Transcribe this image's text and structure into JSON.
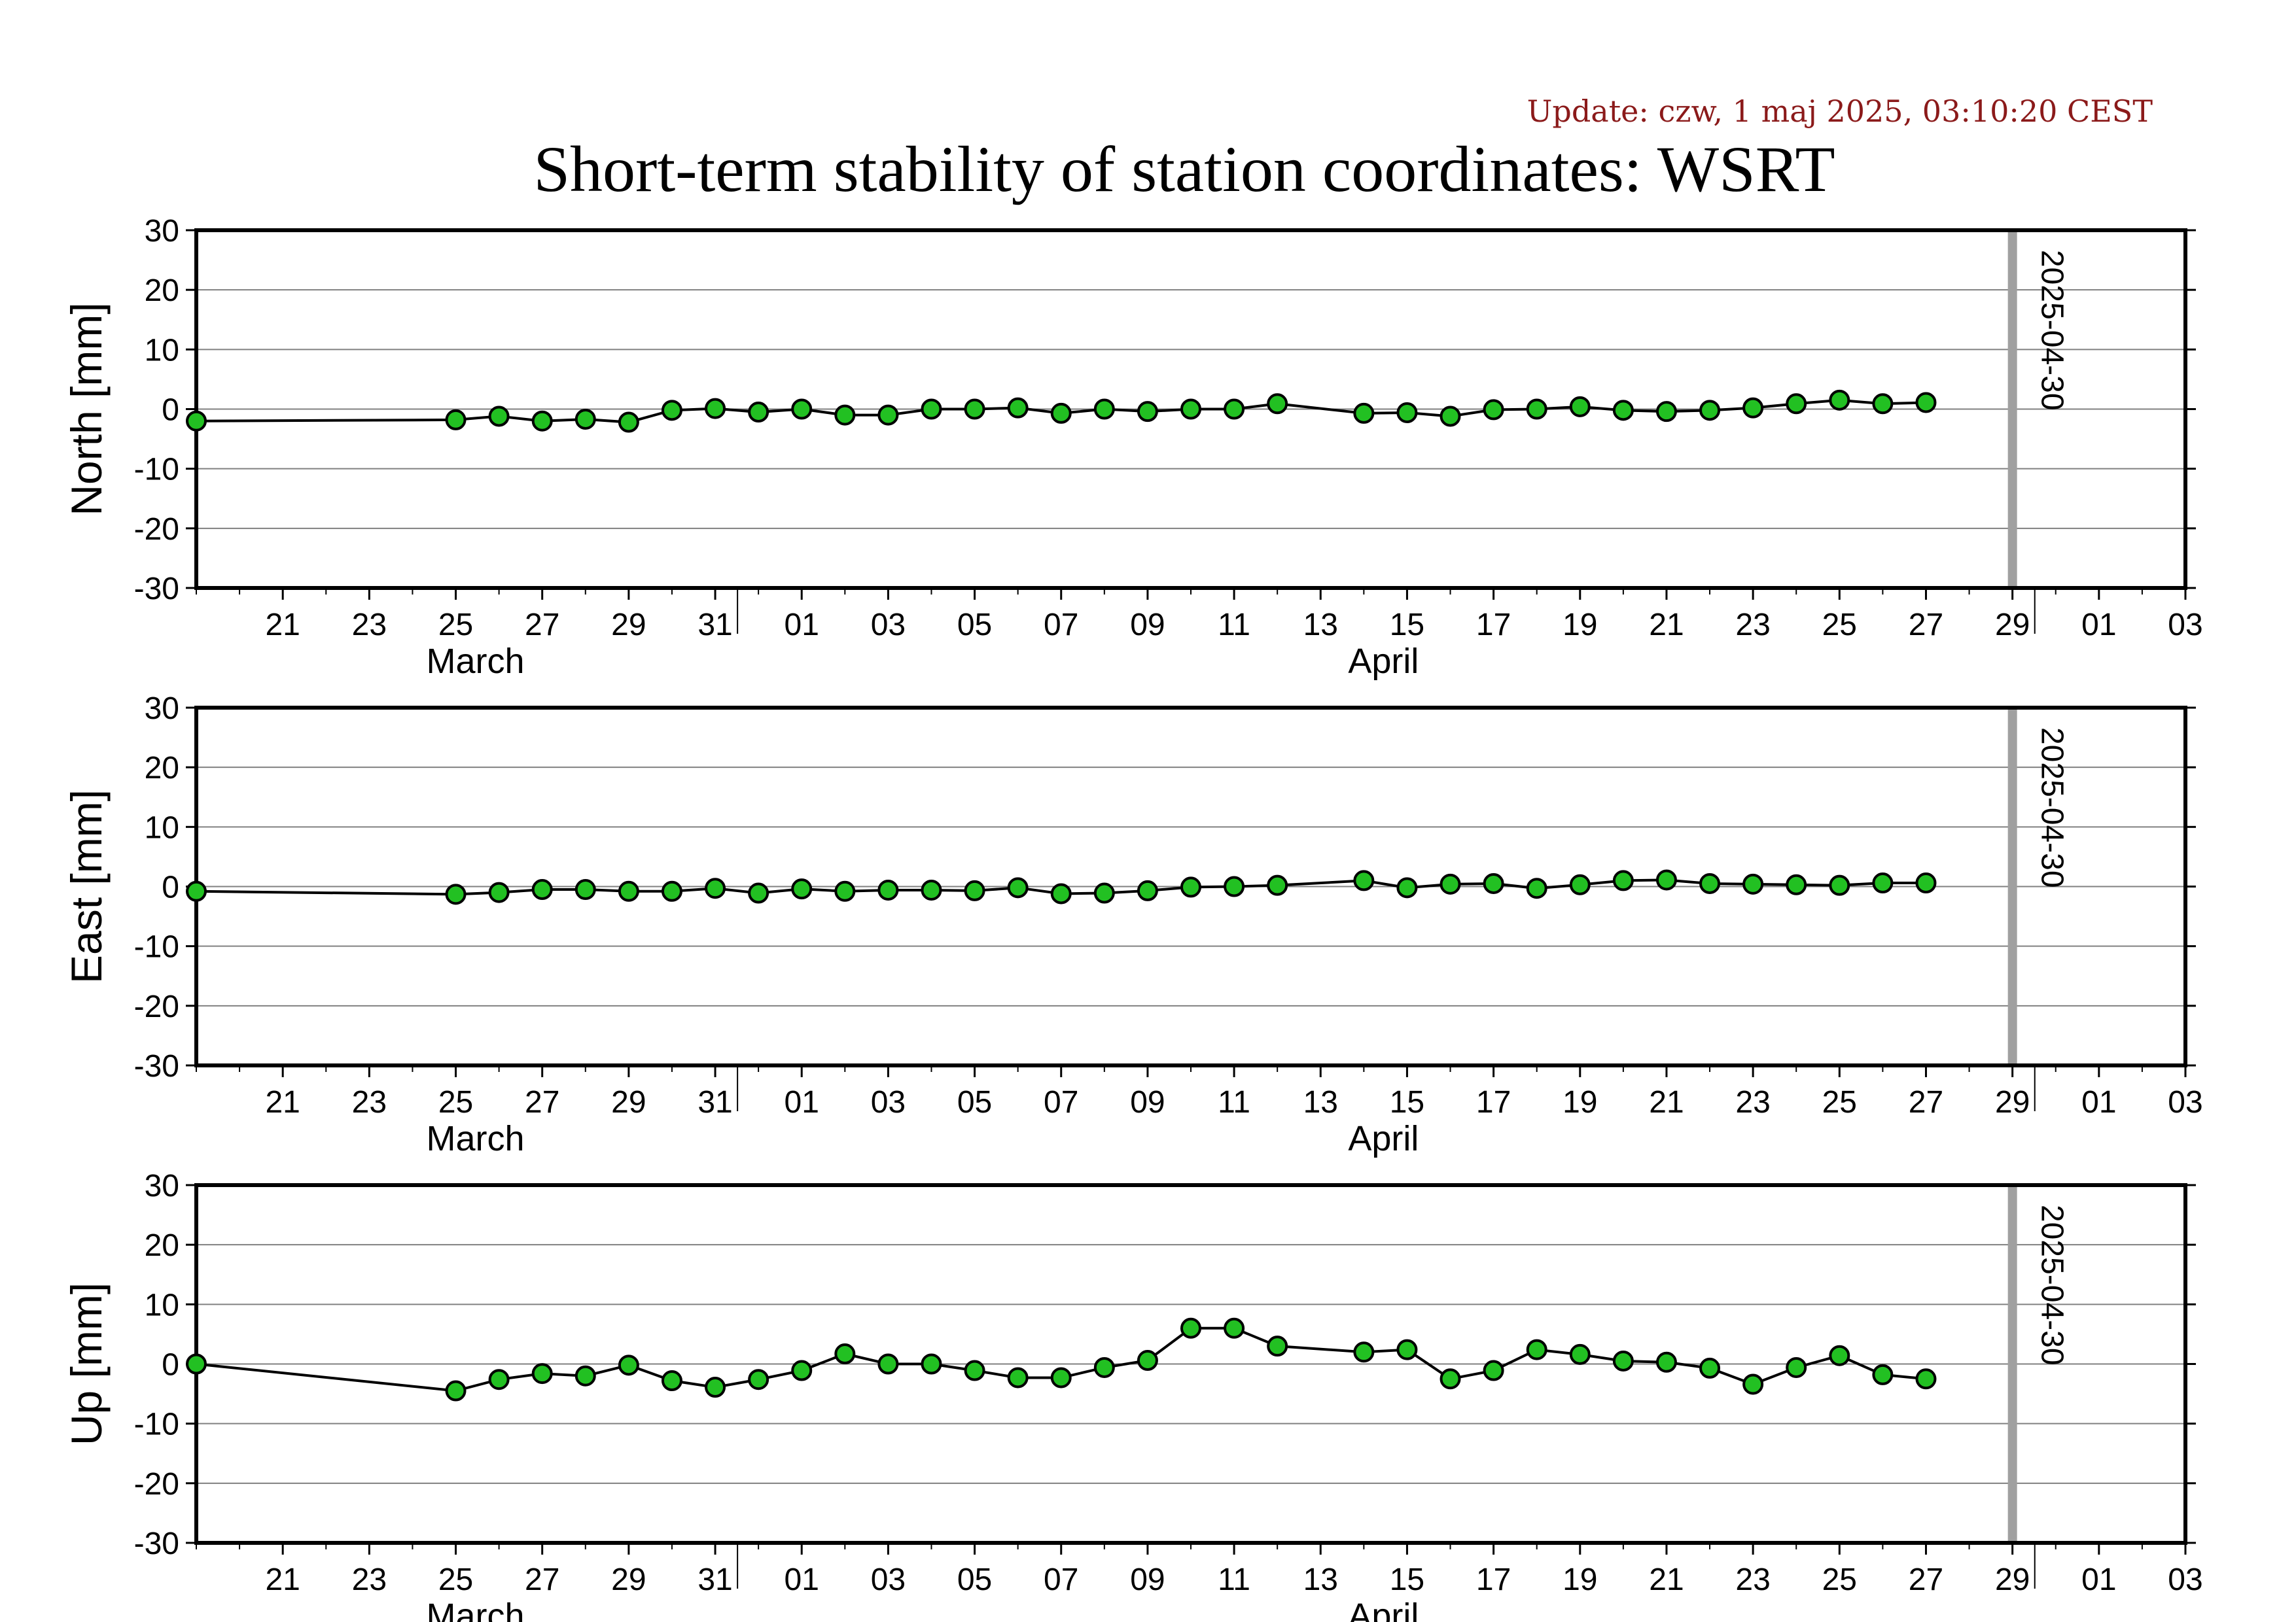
{
  "update_text": "Update: czw, 1 maj 2025, 03:10:20 CEST",
  "title": "Short-term stability of station coordinates: WSRT",
  "colors": {
    "point_fill": "#22c022",
    "point_stroke": "#000000",
    "line": "#000000",
    "grid": "#808080",
    "marker_bar": "#a0a0a0",
    "update_text": "#8b1a1a"
  },
  "chart_data": [
    {
      "type": "line",
      "ylabel": "North [mm]",
      "ylim": [
        -30,
        30
      ],
      "yticks": [
        -30,
        -20,
        -10,
        0,
        10,
        20,
        30
      ],
      "grid": true,
      "x_range": [
        "2025-03-19",
        "2025-05-04"
      ],
      "x_ticks": [
        "21",
        "23",
        "25",
        "27",
        "29",
        "31",
        "01",
        "03",
        "05",
        "07",
        "09",
        "11",
        "13",
        "15",
        "17",
        "19",
        "21",
        "23",
        "25",
        "27",
        "29",
        "01",
        "03"
      ],
      "month_labels": [
        "March",
        "April"
      ],
      "marker_date": "2025-04-30",
      "marker_label": "2025-04-30",
      "series": [
        {
          "x": [
            "2025-03-19",
            "2025-03-25",
            "2025-03-26",
            "2025-03-27",
            "2025-03-28",
            "2025-03-29",
            "2025-03-30",
            "2025-03-31",
            "2025-04-01",
            "2025-04-02",
            "2025-04-03",
            "2025-04-04",
            "2025-04-05",
            "2025-04-06",
            "2025-04-07",
            "2025-04-08",
            "2025-04-09",
            "2025-04-10",
            "2025-04-11",
            "2025-04-12",
            "2025-04-13",
            "2025-04-15",
            "2025-04-16",
            "2025-04-17",
            "2025-04-18",
            "2025-04-19",
            "2025-04-20",
            "2025-04-21",
            "2025-04-22",
            "2025-04-23",
            "2025-04-24",
            "2025-04-25",
            "2025-04-26",
            "2025-04-27",
            "2025-04-28"
          ],
          "y": [
            -2,
            -1.8,
            -1.2,
            -2,
            -1.7,
            -2.2,
            -0.2,
            0.1,
            -0.5,
            0,
            -1,
            -1,
            0,
            0,
            0.2,
            -0.7,
            0,
            -0.4,
            0,
            0,
            0.9,
            -0.7,
            -0.6,
            -1.2,
            -0.1,
            0,
            0.4,
            -0.2,
            -0.4,
            -0.2,
            0.2,
            0.9,
            1.5,
            0.9,
            1.1
          ]
        }
      ]
    },
    {
      "type": "line",
      "ylabel": "East [mm]",
      "ylim": [
        -30,
        30
      ],
      "yticks": [
        -30,
        -20,
        -10,
        0,
        10,
        20,
        30
      ],
      "grid": true,
      "x_range": [
        "2025-03-19",
        "2025-05-04"
      ],
      "x_ticks": [
        "21",
        "23",
        "25",
        "27",
        "29",
        "31",
        "01",
        "03",
        "05",
        "07",
        "09",
        "11",
        "13",
        "15",
        "17",
        "19",
        "21",
        "23",
        "25",
        "27",
        "29",
        "01",
        "03"
      ],
      "month_labels": [
        "March",
        "April"
      ],
      "marker_date": "2025-04-30",
      "marker_label": "2025-04-30",
      "series": [
        {
          "x": [
            "2025-03-19",
            "2025-03-25",
            "2025-03-26",
            "2025-03-27",
            "2025-03-28",
            "2025-03-29",
            "2025-03-30",
            "2025-03-31",
            "2025-04-01",
            "2025-04-02",
            "2025-04-03",
            "2025-04-04",
            "2025-04-05",
            "2025-04-06",
            "2025-04-07",
            "2025-04-08",
            "2025-04-09",
            "2025-04-10",
            "2025-04-11",
            "2025-04-12",
            "2025-04-13",
            "2025-04-15",
            "2025-04-16",
            "2025-04-17",
            "2025-04-18",
            "2025-04-19",
            "2025-04-20",
            "2025-04-21",
            "2025-04-22",
            "2025-04-23",
            "2025-04-24",
            "2025-04-25",
            "2025-04-26",
            "2025-04-27",
            "2025-04-28"
          ],
          "y": [
            -0.8,
            -1.3,
            -1,
            -0.5,
            -0.5,
            -0.8,
            -0.8,
            -0.3,
            -1.1,
            -0.4,
            -0.8,
            -0.6,
            -0.6,
            -0.7,
            -0.2,
            -1.2,
            -1.1,
            -0.7,
            -0.1,
            0,
            0.2,
            1,
            -0.2,
            0.4,
            0.5,
            -0.3,
            0.3,
            1,
            1.1,
            0.5,
            0.4,
            0.3,
            0.2,
            0.6,
            0.6
          ]
        }
      ]
    },
    {
      "type": "line",
      "ylabel": "Up [mm]",
      "ylim": [
        -30,
        30
      ],
      "yticks": [
        -30,
        -20,
        -10,
        0,
        10,
        20,
        30
      ],
      "grid": true,
      "x_range": [
        "2025-03-19",
        "2025-05-04"
      ],
      "x_ticks": [
        "21",
        "23",
        "25",
        "27",
        "29",
        "31",
        "01",
        "03",
        "05",
        "07",
        "09",
        "11",
        "13",
        "15",
        "17",
        "19",
        "21",
        "23",
        "25",
        "27",
        "29",
        "01",
        "03"
      ],
      "month_labels": [
        "March",
        "April"
      ],
      "marker_date": "2025-04-30",
      "marker_label": "2025-04-30",
      "series": [
        {
          "x": [
            "2025-03-19",
            "2025-03-25",
            "2025-03-26",
            "2025-03-27",
            "2025-03-28",
            "2025-03-29",
            "2025-03-30",
            "2025-03-31",
            "2025-04-01",
            "2025-04-02",
            "2025-04-03",
            "2025-04-04",
            "2025-04-05",
            "2025-04-06",
            "2025-04-07",
            "2025-04-08",
            "2025-04-09",
            "2025-04-10",
            "2025-04-11",
            "2025-04-12",
            "2025-04-13",
            "2025-04-15",
            "2025-04-16",
            "2025-04-17",
            "2025-04-18",
            "2025-04-19",
            "2025-04-20",
            "2025-04-21",
            "2025-04-22",
            "2025-04-23",
            "2025-04-24",
            "2025-04-25",
            "2025-04-26",
            "2025-04-27",
            "2025-04-28"
          ],
          "y": [
            0,
            -4.5,
            -2.6,
            -1.6,
            -2,
            -0.2,
            -2.8,
            -3.9,
            -2.6,
            -1.1,
            1.7,
            0,
            0,
            -1.1,
            -2.3,
            -2.3,
            -0.6,
            0.6,
            6,
            6,
            3,
            2,
            2.4,
            -2.5,
            -1.1,
            2.4,
            1.6,
            0.5,
            0.3,
            -0.7,
            -3.4,
            -0.6,
            1.4,
            -1.8,
            -2.5
          ]
        }
      ]
    }
  ]
}
